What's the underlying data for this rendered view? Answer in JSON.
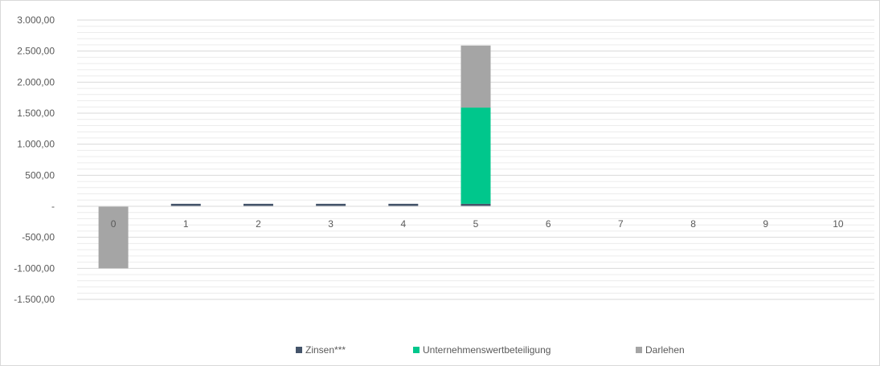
{
  "chart_data": {
    "type": "bar",
    "stacked": true,
    "categories": [
      "0",
      "1",
      "2",
      "3",
      "4",
      "5",
      "6",
      "7",
      "8",
      "9",
      "10"
    ],
    "series": [
      {
        "name": "Zinsen***",
        "color": "#44546a",
        "values": [
          0,
          40,
          40,
          40,
          40,
          40,
          0,
          0,
          0,
          0,
          0
        ]
      },
      {
        "name": "Unternehmenswertbeteiligung",
        "color": "#00c78c",
        "values": [
          0,
          0,
          0,
          0,
          0,
          1550,
          0,
          0,
          0,
          0,
          0
        ]
      },
      {
        "name": "Darlehen",
        "color": "#a5a5a5",
        "values": [
          -1000,
          0,
          0,
          0,
          0,
          1000,
          0,
          0,
          0,
          0,
          0
        ]
      }
    ],
    "ylim": [
      -1500,
      3000
    ],
    "yticks": [
      3000,
      2500,
      2000,
      1500,
      1000,
      500,
      0,
      -500,
      -1000,
      -1500
    ],
    "ytick_labels": [
      "3.000,00",
      "2.500,00",
      "2.000,00",
      "1.500,00",
      "1.000,00",
      "500,00",
      "-",
      "-500,00",
      "-1.000,00",
      "-1.500,00"
    ],
    "minor_step": 100,
    "grid": true,
    "legend_position": "bottom",
    "title": "",
    "xlabel": "",
    "ylabel": ""
  }
}
